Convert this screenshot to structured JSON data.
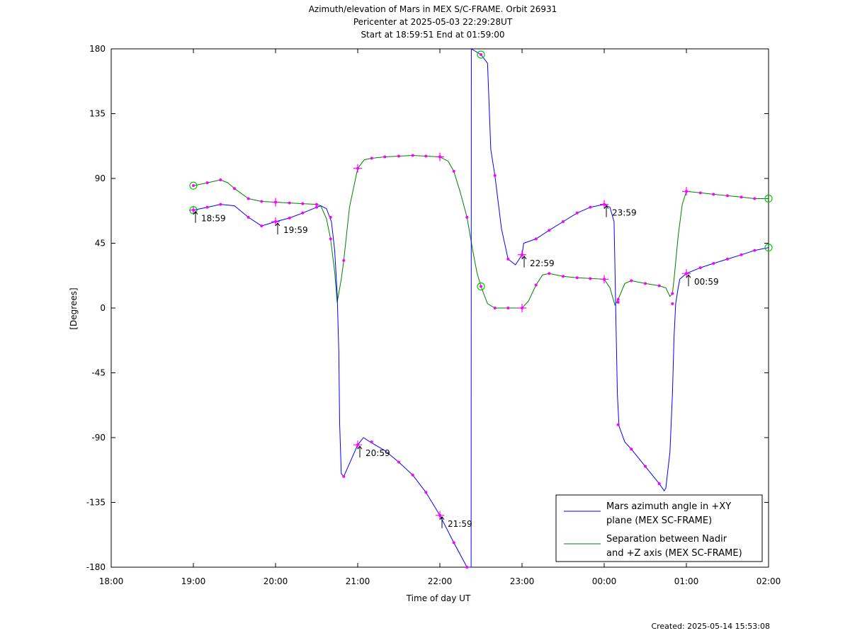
{
  "chart_data": {
    "type": "line",
    "title": [
      "Azimuth/elevation of Mars in MEX S/C-FRAME.  Orbit 26931",
      "Pericenter at 2025-05-03 22:29:28UT",
      "Start at 18:59:51 End at 01:59:00"
    ],
    "xlabel": "Time of day UT",
    "ylabel": "[Degrees]",
    "xlim_hours": [
      18,
      26
    ],
    "ylim": [
      -180,
      180
    ],
    "x_ticks": [
      {
        "h": 18,
        "label": "18:00"
      },
      {
        "h": 19,
        "label": "19:00"
      },
      {
        "h": 20,
        "label": "20:00"
      },
      {
        "h": 21,
        "label": "21:00"
      },
      {
        "h": 22,
        "label": "22:00"
      },
      {
        "h": 23,
        "label": "23:00"
      },
      {
        "h": 24,
        "label": "00:00"
      },
      {
        "h": 25,
        "label": "01:00"
      },
      {
        "h": 26,
        "label": "02:00"
      }
    ],
    "y_ticks": [
      180,
      135,
      90,
      45,
      0,
      -45,
      -90,
      -135,
      -180
    ],
    "legend_position": "bottom-right",
    "series": [
      {
        "name": "Mars azimuth angle in +XY plane (MEX SC-FRAME)",
        "legend_lines": [
          "Mars azimuth angle in +XY",
          "plane (MEX SC-FRAME)"
        ],
        "color": "#0000ff",
        "points": [
          [
            19.0,
            68
          ],
          [
            19.17,
            70
          ],
          [
            19.33,
            72
          ],
          [
            19.5,
            71
          ],
          [
            19.67,
            63
          ],
          [
            19.83,
            57
          ],
          [
            20.0,
            60
          ],
          [
            20.17,
            62.5
          ],
          [
            20.33,
            66
          ],
          [
            20.5,
            70
          ],
          [
            20.55,
            71
          ],
          [
            20.62,
            69
          ],
          [
            20.68,
            60
          ],
          [
            20.72,
            40
          ],
          [
            20.75,
            10
          ],
          [
            20.77,
            -30
          ],
          [
            20.78,
            -80
          ],
          [
            20.8,
            -115
          ],
          [
            20.83,
            -117
          ],
          [
            20.9,
            -108
          ],
          [
            21.0,
            -95
          ],
          [
            21.07,
            -90
          ],
          [
            21.15,
            -93
          ],
          [
            21.33,
            -99
          ],
          [
            21.5,
            -107
          ],
          [
            21.67,
            -116
          ],
          [
            21.83,
            -128
          ],
          [
            22.0,
            -144
          ],
          [
            22.17,
            -163
          ],
          [
            22.33,
            -180
          ],
          [
            22.38,
            -180
          ],
          [
            22.383,
            180
          ],
          [
            22.5,
            176
          ],
          [
            22.58,
            170
          ],
          [
            22.62,
            110
          ],
          [
            22.67,
            92
          ],
          [
            22.75,
            55
          ],
          [
            22.83,
            34
          ],
          [
            22.92,
            30
          ],
          [
            23.0,
            37
          ],
          [
            23.02,
            45
          ],
          [
            23.17,
            48
          ],
          [
            23.33,
            54
          ],
          [
            23.5,
            60
          ],
          [
            23.67,
            66
          ],
          [
            23.83,
            70
          ],
          [
            24.0,
            72
          ],
          [
            24.07,
            70
          ],
          [
            24.12,
            60
          ],
          [
            24.13,
            30
          ],
          [
            24.14,
            0
          ],
          [
            24.16,
            -60
          ],
          [
            24.18,
            -82
          ],
          [
            24.25,
            -93
          ],
          [
            24.33,
            -98
          ],
          [
            24.5,
            -110
          ],
          [
            24.67,
            -122
          ],
          [
            24.73,
            -127
          ],
          [
            24.75,
            -125
          ],
          [
            24.8,
            -100
          ],
          [
            24.83,
            -60
          ],
          [
            24.85,
            -20
          ],
          [
            24.87,
            3
          ],
          [
            24.9,
            14
          ],
          [
            24.92,
            20
          ],
          [
            25.0,
            24
          ],
          [
            25.17,
            28
          ],
          [
            25.33,
            31
          ],
          [
            25.5,
            34
          ],
          [
            25.67,
            37
          ],
          [
            25.83,
            40
          ],
          [
            26.0,
            42
          ]
        ],
        "markers": [
          [
            19.0,
            68
          ],
          [
            19.17,
            70
          ],
          [
            19.33,
            72
          ],
          [
            19.67,
            63
          ],
          [
            19.83,
            57
          ],
          [
            20.0,
            60
          ],
          [
            20.17,
            62.5
          ],
          [
            20.33,
            66
          ],
          [
            20.5,
            70
          ],
          [
            20.67,
            63
          ],
          [
            20.83,
            -117
          ],
          [
            21.0,
            -95
          ],
          [
            21.17,
            -93
          ],
          [
            21.5,
            -107
          ],
          [
            21.67,
            -116
          ],
          [
            21.83,
            -128
          ],
          [
            22.0,
            -144
          ],
          [
            22.17,
            -163
          ],
          [
            22.33,
            -180
          ],
          [
            22.5,
            176
          ],
          [
            22.67,
            92
          ],
          [
            22.83,
            34
          ],
          [
            23.0,
            37
          ],
          [
            23.17,
            48
          ],
          [
            23.33,
            54
          ],
          [
            23.5,
            60
          ],
          [
            23.67,
            66
          ],
          [
            23.83,
            70
          ],
          [
            24.0,
            72
          ],
          [
            24.17,
            4
          ],
          [
            24.17,
            -81
          ],
          [
            24.33,
            -98
          ],
          [
            24.5,
            -110
          ],
          [
            24.67,
            -122
          ],
          [
            24.83,
            3
          ],
          [
            25.0,
            24
          ],
          [
            25.17,
            28
          ],
          [
            25.33,
            31
          ],
          [
            25.5,
            34
          ],
          [
            25.67,
            37
          ],
          [
            25.83,
            40
          ]
        ]
      },
      {
        "name": "Separation between Nadir and +Z axis (MEX SC-FRAME)",
        "legend_lines": [
          "Separation between Nadir",
          "and +Z axis (MEX SC-FRAME)"
        ],
        "color": "#007f00",
        "points": [
          [
            19.0,
            85
          ],
          [
            19.17,
            87
          ],
          [
            19.33,
            89
          ],
          [
            19.42,
            87
          ],
          [
            19.5,
            83
          ],
          [
            19.67,
            76
          ],
          [
            19.83,
            74
          ],
          [
            20.0,
            73.5
          ],
          [
            20.17,
            73
          ],
          [
            20.33,
            72.5
          ],
          [
            20.5,
            72
          ],
          [
            20.55,
            71
          ],
          [
            20.62,
            62
          ],
          [
            20.67,
            48
          ],
          [
            20.72,
            25
          ],
          [
            20.75,
            4
          ],
          [
            20.8,
            20
          ],
          [
            20.83,
            33
          ],
          [
            20.9,
            70
          ],
          [
            21.0,
            97
          ],
          [
            21.08,
            103
          ],
          [
            21.17,
            104
          ],
          [
            21.33,
            105
          ],
          [
            21.5,
            105.5
          ],
          [
            21.67,
            106
          ],
          [
            21.83,
            105.5
          ],
          [
            22.0,
            105
          ],
          [
            22.1,
            102
          ],
          [
            22.17,
            95
          ],
          [
            22.25,
            80
          ],
          [
            22.33,
            63
          ],
          [
            22.4,
            40
          ],
          [
            22.45,
            25
          ],
          [
            22.5,
            15
          ],
          [
            22.58,
            3
          ],
          [
            22.67,
            0
          ],
          [
            22.83,
            0
          ],
          [
            23.0,
            0
          ],
          [
            23.08,
            5
          ],
          [
            23.17,
            16
          ],
          [
            23.25,
            23
          ],
          [
            23.33,
            24
          ],
          [
            23.5,
            22
          ],
          [
            23.67,
            21
          ],
          [
            23.83,
            20.5
          ],
          [
            24.0,
            20
          ],
          [
            24.07,
            14
          ],
          [
            24.13,
            2
          ],
          [
            24.17,
            6
          ],
          [
            24.25,
            17
          ],
          [
            24.33,
            19
          ],
          [
            24.5,
            17
          ],
          [
            24.67,
            15.5
          ],
          [
            24.75,
            14
          ],
          [
            24.8,
            8
          ],
          [
            24.83,
            10
          ],
          [
            24.85,
            20
          ],
          [
            24.9,
            50
          ],
          [
            24.95,
            72
          ],
          [
            25.0,
            81
          ],
          [
            25.17,
            80
          ],
          [
            25.33,
            79
          ],
          [
            25.5,
            78
          ],
          [
            25.67,
            77
          ],
          [
            25.83,
            76
          ],
          [
            26.0,
            76
          ]
        ],
        "markers": [
          [
            19.0,
            85
          ],
          [
            19.17,
            87
          ],
          [
            19.33,
            89
          ],
          [
            19.5,
            83
          ],
          [
            19.67,
            76
          ],
          [
            19.83,
            74
          ],
          [
            20.0,
            73.5
          ],
          [
            20.17,
            73
          ],
          [
            20.33,
            72.5
          ],
          [
            20.5,
            72
          ],
          [
            20.67,
            48
          ],
          [
            20.83,
            33
          ],
          [
            21.0,
            97
          ],
          [
            21.17,
            104
          ],
          [
            21.33,
            105
          ],
          [
            21.5,
            105.5
          ],
          [
            21.67,
            106
          ],
          [
            21.83,
            105.5
          ],
          [
            22.0,
            105
          ],
          [
            22.17,
            95
          ],
          [
            22.33,
            63
          ],
          [
            22.5,
            15
          ],
          [
            22.67,
            0
          ],
          [
            22.83,
            0
          ],
          [
            23.0,
            0
          ],
          [
            23.17,
            16
          ],
          [
            23.33,
            24
          ],
          [
            23.5,
            22
          ],
          [
            23.67,
            21
          ],
          [
            23.83,
            20.5
          ],
          [
            24.0,
            20
          ],
          [
            24.17,
            6
          ],
          [
            24.33,
            19
          ],
          [
            24.5,
            17
          ],
          [
            24.67,
            15.5
          ],
          [
            24.83,
            10
          ],
          [
            25.0,
            81
          ],
          [
            25.17,
            80
          ],
          [
            25.33,
            79
          ],
          [
            25.5,
            78
          ],
          [
            25.67,
            77
          ],
          [
            25.83,
            76
          ]
        ]
      }
    ],
    "hour_markers": [
      [
        19.0,
        68
      ],
      [
        20.0,
        73.5
      ],
      [
        20.0,
        60
      ],
      [
        21.0,
        97
      ],
      [
        21.0,
        -95
      ],
      [
        22.0,
        -144
      ],
      [
        22.0,
        105
      ],
      [
        23.0,
        37
      ],
      [
        23.0,
        0
      ],
      [
        24.0,
        72
      ],
      [
        24.0,
        20
      ],
      [
        25.0,
        24
      ],
      [
        25.0,
        81
      ]
    ],
    "circle_markers": [
      [
        19.0,
        85
      ],
      [
        19.0,
        68
      ],
      [
        22.5,
        176
      ],
      [
        22.5,
        15
      ],
      [
        26.0,
        76
      ],
      [
        26.0,
        42
      ]
    ],
    "annotations": [
      {
        "h": 19.0,
        "y": 68,
        "label": "18:59"
      },
      {
        "h": 20.0,
        "y": 60,
        "label": "19:59"
      },
      {
        "h": 21.0,
        "y": -95,
        "label": "20:59"
      },
      {
        "h": 22.0,
        "y": -144,
        "label": "21:59"
      },
      {
        "h": 23.0,
        "y": 37,
        "label": "22:59"
      },
      {
        "h": 24.0,
        "y": 72,
        "label": "23:59"
      },
      {
        "h": 25.0,
        "y": 24,
        "label": "00:59"
      }
    ],
    "marker_color": "#ff00ff",
    "circle_color": "#00cc00"
  },
  "footer": {
    "created": "Created: 2025-05-14 15:53:08"
  }
}
